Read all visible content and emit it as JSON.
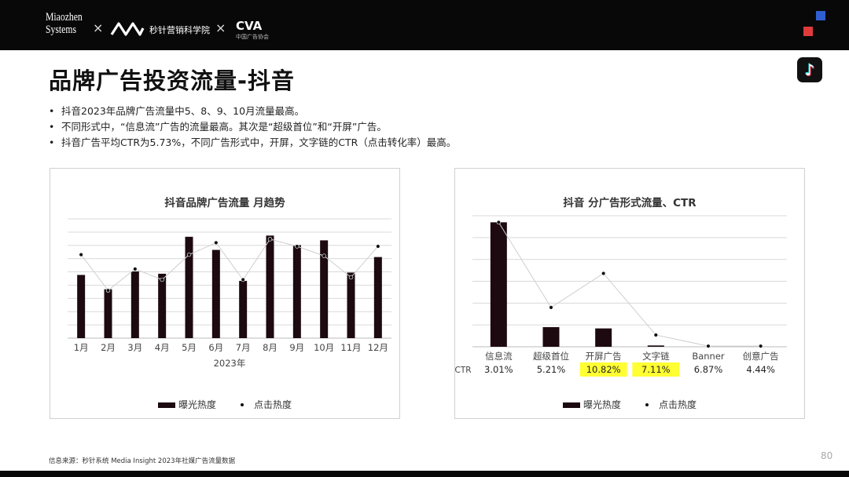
{
  "header": {
    "logo_miaozhen_line1": "Miaozhen",
    "logo_miaozhen_line2": "Systems",
    "cross": "×",
    "logo_mz_text": "秒针营销科学院",
    "logo_cva": "CVA",
    "logo_cva_sub": "中国广告协会"
  },
  "title": "品牌广告投资流量-抖音",
  "tiktok_icon": "♪",
  "bullets": [
    "抖音2023年品牌广告流量中5、8、9、10月流量最高。",
    "不同形式中，“信息流”广告的流量最高。其次是“超级首位”和“开屏”广告。",
    "抖音广告平均CTR为5.73%，不同广告形式中，开屏，文字链的CTR（点击转化率）最高。"
  ],
  "legend": {
    "bar": "曝光热度",
    "line": "点击热度"
  },
  "chart_data": [
    {
      "type": "bar",
      "title": "抖音品牌广告流量  月趋势",
      "xlabel": "2023年",
      "categories": [
        "1月",
        "2月",
        "3月",
        "4月",
        "5月",
        "6月",
        "7月",
        "8月",
        "9月",
        "10月",
        "11月",
        "12月"
      ],
      "ylim": [
        0,
        10
      ],
      "grid": true,
      "legend": "bottom",
      "series": [
        {
          "name": "曝光热度",
          "type": "bar",
          "values": [
            5.3,
            4.1,
            5.6,
            5.4,
            8.5,
            7.4,
            4.8,
            8.6,
            7.8,
            8.2,
            5.5,
            6.8
          ]
        },
        {
          "name": "点击热度",
          "type": "line",
          "values": [
            7.0,
            4.0,
            5.8,
            4.9,
            7.0,
            8.0,
            4.9,
            8.3,
            7.7,
            6.9,
            5.1,
            7.7
          ]
        }
      ]
    },
    {
      "type": "bar",
      "title": "抖音  分广告形式流量、CTR",
      "categories": [
        "信息流",
        "超级首位",
        "开屏广告",
        "文字链",
        "Banner",
        "创意广告"
      ],
      "ylim": [
        0,
        10
      ],
      "grid": true,
      "legend": "bottom",
      "ctr_label": "CTR",
      "ctr": [
        "3.01%",
        "5.21%",
        "10.82%",
        "7.11%",
        "6.87%",
        "4.44%"
      ],
      "ctr_highlight": [
        false,
        false,
        true,
        true,
        false,
        false
      ],
      "highlight_color": "#ffff33",
      "series": [
        {
          "name": "曝光热度",
          "type": "bar",
          "values": [
            9.5,
            1.5,
            1.4,
            0.1,
            0,
            0
          ]
        },
        {
          "name": "点击热度",
          "type": "line",
          "values": [
            9.5,
            3.0,
            5.6,
            0.9,
            0.05,
            0.05
          ]
        }
      ]
    }
  ],
  "footer": {
    "source": "信息来源：秒针系统 Media Insight 2023年社媒广告流量数据",
    "page": "80"
  }
}
